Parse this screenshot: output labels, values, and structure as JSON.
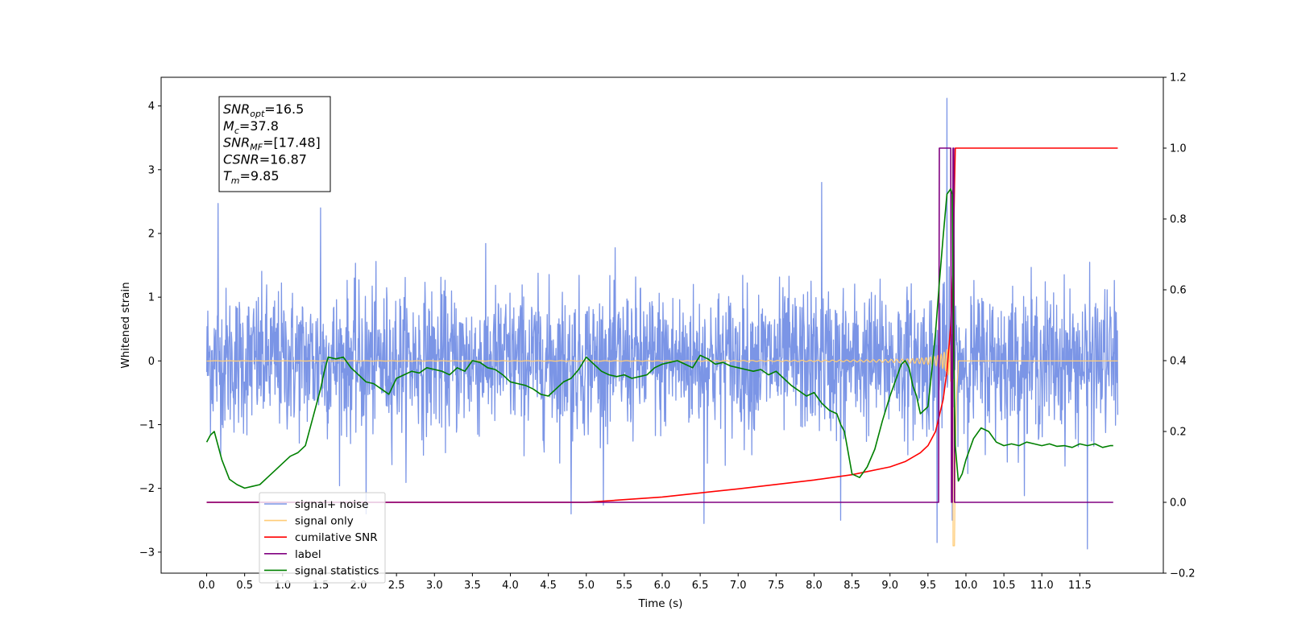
{
  "chart_data": {
    "type": "line",
    "xlabel": "Time (s)",
    "ylabel": "Whitened strain",
    "xlim": [
      -0.6,
      12.6
    ],
    "ylim_left": [
      -3.33,
      4.45
    ],
    "ylim_right": [
      -0.2,
      1.2
    ],
    "x_ticks": [
      0.0,
      0.5,
      1.0,
      1.5,
      2.0,
      2.5,
      3.0,
      3.5,
      4.0,
      4.5,
      5.0,
      5.5,
      6.0,
      6.5,
      7.0,
      7.5,
      8.0,
      8.5,
      9.0,
      9.5,
      10.0,
      10.5,
      11.0,
      11.5
    ],
    "x_tick_labels": [
      "0.0",
      "0.5",
      "1.0",
      "1.5",
      "2.0",
      "2.5",
      "3.0",
      "3.5",
      "4.0",
      "4.5",
      "5.0",
      "5.5",
      "6.0",
      "6.5",
      "7.0",
      "7.5",
      "8.0",
      "8.5",
      "9.0",
      "9.5",
      "10.0",
      "10.5",
      "11.0",
      "11.5"
    ],
    "y_ticks_left": [
      -3,
      -2,
      -1,
      0,
      1,
      2,
      3,
      4
    ],
    "y_tick_labels_left": [
      "−3",
      "−2",
      "−1",
      "0",
      "1",
      "2",
      "3",
      "4"
    ],
    "y_ticks_right": [
      -0.2,
      0.0,
      0.2,
      0.4,
      0.6,
      0.8,
      1.0,
      1.2
    ],
    "y_tick_labels_right": [
      "−0.2",
      "0.0",
      "0.2",
      "0.4",
      "0.6",
      "0.8",
      "1.0",
      "1.2"
    ],
    "legend_position": "lower-left",
    "annotation": {
      "lines": [
        {
          "main": "SNR",
          "sub": "opt",
          "rest": "=16.5"
        },
        {
          "main": "M",
          "sub": "c",
          "rest": "=37.8"
        },
        {
          "main": "SNR",
          "sub": "MF",
          "rest": "=[17.48]"
        },
        {
          "main": "CSNR",
          "sub": "",
          "rest": "=16.87"
        },
        {
          "main": "T",
          "sub": "m",
          "rest": "=9.85"
        }
      ]
    },
    "series": [
      {
        "name": "signal+ noise",
        "axis": "left",
        "color": "#7b95e6",
        "kind": "noise",
        "x_range": [
          0.0,
          12.0
        ],
        "noise_sigma": 0.75,
        "peaks": [
          [
            0.15,
            2.47
          ],
          [
            1.5,
            2.4
          ],
          [
            2.1,
            -2.4
          ],
          [
            4.8,
            -2.4
          ],
          [
            6.55,
            -2.55
          ],
          [
            8.1,
            2.8
          ],
          [
            8.35,
            -2.5
          ],
          [
            9.62,
            -2.85
          ],
          [
            9.75,
            4.12
          ],
          [
            9.82,
            -2.5
          ],
          [
            11.6,
            -2.95
          ]
        ]
      },
      {
        "name": "signal only",
        "axis": "left",
        "color": "#ffcc77",
        "kind": "chirp",
        "x_range": [
          0.0,
          12.0
        ],
        "merger_time": 9.85,
        "max_amplitude": 2.9
      },
      {
        "name": "cumilative SNR",
        "axis": "right",
        "color": "#ff0000",
        "x": [
          0.0,
          5.0,
          6.0,
          7.0,
          8.0,
          8.5,
          9.0,
          9.2,
          9.4,
          9.5,
          9.6,
          9.7,
          9.75,
          9.8,
          9.83,
          9.85,
          9.86,
          10.0,
          11.0,
          12.0
        ],
        "y": [
          0.0,
          0.0,
          0.015,
          0.038,
          0.063,
          0.078,
          0.1,
          0.115,
          0.14,
          0.16,
          0.2,
          0.29,
          0.37,
          0.5,
          0.65,
          0.9,
          1.0,
          1.0,
          1.0,
          1.0
        ]
      },
      {
        "name": "label",
        "axis": "right",
        "color": "#800080",
        "x": [
          0.0,
          9.64,
          9.65,
          9.8,
          9.81,
          9.82,
          9.83,
          9.84,
          9.85,
          11.94
        ],
        "y": [
          0.0,
          0.0,
          1.0,
          1.0,
          0.0,
          0.0,
          1.0,
          1.0,
          0.0,
          0.0
        ]
      },
      {
        "name": "signal statistics",
        "axis": "right",
        "color": "#008000",
        "x": [
          0.0,
          0.05,
          0.1,
          0.2,
          0.3,
          0.4,
          0.5,
          0.6,
          0.7,
          0.8,
          0.9,
          1.0,
          1.1,
          1.2,
          1.3,
          1.4,
          1.5,
          1.55,
          1.6,
          1.7,
          1.8,
          1.9,
          2.0,
          2.1,
          2.2,
          2.3,
          2.4,
          2.5,
          2.6,
          2.7,
          2.8,
          2.9,
          3.0,
          3.1,
          3.2,
          3.3,
          3.4,
          3.5,
          3.6,
          3.7,
          3.8,
          3.9,
          4.0,
          4.1,
          4.2,
          4.3,
          4.4,
          4.5,
          4.6,
          4.7,
          4.8,
          4.9,
          5.0,
          5.1,
          5.2,
          5.3,
          5.4,
          5.5,
          5.6,
          5.7,
          5.8,
          5.9,
          6.0,
          6.1,
          6.2,
          6.3,
          6.4,
          6.5,
          6.6,
          6.7,
          6.8,
          6.9,
          7.0,
          7.1,
          7.2,
          7.3,
          7.4,
          7.5,
          7.6,
          7.7,
          7.8,
          7.9,
          8.0,
          8.1,
          8.2,
          8.3,
          8.35,
          8.4,
          8.5,
          8.6,
          8.7,
          8.8,
          8.9,
          9.0,
          9.1,
          9.15,
          9.2,
          9.25,
          9.3,
          9.35,
          9.4,
          9.5,
          9.55,
          9.6,
          9.65,
          9.7,
          9.75,
          9.8,
          9.82,
          9.84,
          9.86,
          9.9,
          9.95,
          10.0,
          10.1,
          10.2,
          10.3,
          10.4,
          10.5,
          10.6,
          10.7,
          10.8,
          10.9,
          11.0,
          11.1,
          11.2,
          11.3,
          11.4,
          11.5,
          11.6,
          11.7,
          11.8,
          11.9,
          11.94
        ],
        "y": [
          0.17,
          0.19,
          0.2,
          0.12,
          0.065,
          0.05,
          0.04,
          0.045,
          0.05,
          0.07,
          0.09,
          0.11,
          0.13,
          0.14,
          0.16,
          0.24,
          0.32,
          0.37,
          0.41,
          0.405,
          0.41,
          0.38,
          0.36,
          0.34,
          0.335,
          0.32,
          0.305,
          0.35,
          0.36,
          0.37,
          0.365,
          0.38,
          0.375,
          0.37,
          0.36,
          0.38,
          0.37,
          0.4,
          0.395,
          0.38,
          0.375,
          0.36,
          0.34,
          0.335,
          0.33,
          0.32,
          0.305,
          0.3,
          0.32,
          0.34,
          0.35,
          0.375,
          0.41,
          0.39,
          0.37,
          0.36,
          0.355,
          0.36,
          0.35,
          0.355,
          0.36,
          0.38,
          0.39,
          0.395,
          0.4,
          0.39,
          0.38,
          0.415,
          0.405,
          0.39,
          0.395,
          0.385,
          0.38,
          0.375,
          0.37,
          0.375,
          0.36,
          0.37,
          0.35,
          0.33,
          0.315,
          0.3,
          0.31,
          0.28,
          0.26,
          0.25,
          0.22,
          0.2,
          0.08,
          0.07,
          0.1,
          0.15,
          0.23,
          0.3,
          0.36,
          0.39,
          0.4,
          0.38,
          0.33,
          0.3,
          0.25,
          0.27,
          0.37,
          0.48,
          0.62,
          0.75,
          0.87,
          0.885,
          0.87,
          0.4,
          0.16,
          0.06,
          0.08,
          0.12,
          0.18,
          0.21,
          0.2,
          0.17,
          0.16,
          0.165,
          0.16,
          0.17,
          0.165,
          0.16,
          0.165,
          0.158,
          0.16,
          0.155,
          0.165,
          0.16,
          0.165,
          0.155,
          0.16,
          0.16
        ]
      }
    ]
  }
}
